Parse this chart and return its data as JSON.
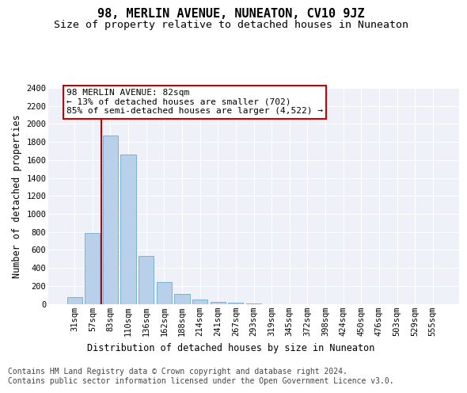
{
  "title": "98, MERLIN AVENUE, NUNEATON, CV10 9JZ",
  "subtitle": "Size of property relative to detached houses in Nuneaton",
  "xlabel": "Distribution of detached houses by size in Nuneaton",
  "ylabel": "Number of detached properties",
  "categories": [
    "31sqm",
    "57sqm",
    "83sqm",
    "110sqm",
    "136sqm",
    "162sqm",
    "188sqm",
    "214sqm",
    "241sqm",
    "267sqm",
    "293sqm",
    "319sqm",
    "345sqm",
    "372sqm",
    "398sqm",
    "424sqm",
    "450sqm",
    "476sqm",
    "503sqm",
    "529sqm",
    "555sqm"
  ],
  "values": [
    75,
    790,
    1870,
    1660,
    530,
    245,
    110,
    50,
    25,
    10,
    5,
    0,
    0,
    0,
    0,
    0,
    0,
    0,
    0,
    0,
    0
  ],
  "bar_color": "#b8d0ea",
  "bar_edge_color": "#6aaad4",
  "highlight_index": 2,
  "highlight_line_color": "#cc0000",
  "annotation_text": "98 MERLIN AVENUE: 82sqm\n← 13% of detached houses are smaller (702)\n85% of semi-detached houses are larger (4,522) →",
  "annotation_box_color": "#ffffff",
  "annotation_box_edge_color": "#cc0000",
  "ylim": [
    0,
    2400
  ],
  "yticks": [
    0,
    200,
    400,
    600,
    800,
    1000,
    1200,
    1400,
    1600,
    1800,
    2000,
    2200,
    2400
  ],
  "footer_line1": "Contains HM Land Registry data © Crown copyright and database right 2024.",
  "footer_line2": "Contains public sector information licensed under the Open Government Licence v3.0.",
  "bg_color": "#eef2f8",
  "fig_bg_color": "#ffffff",
  "title_fontsize": 11,
  "subtitle_fontsize": 9.5,
  "axis_label_fontsize": 8.5,
  "tick_fontsize": 7.5,
  "annotation_fontsize": 8,
  "footer_fontsize": 7
}
